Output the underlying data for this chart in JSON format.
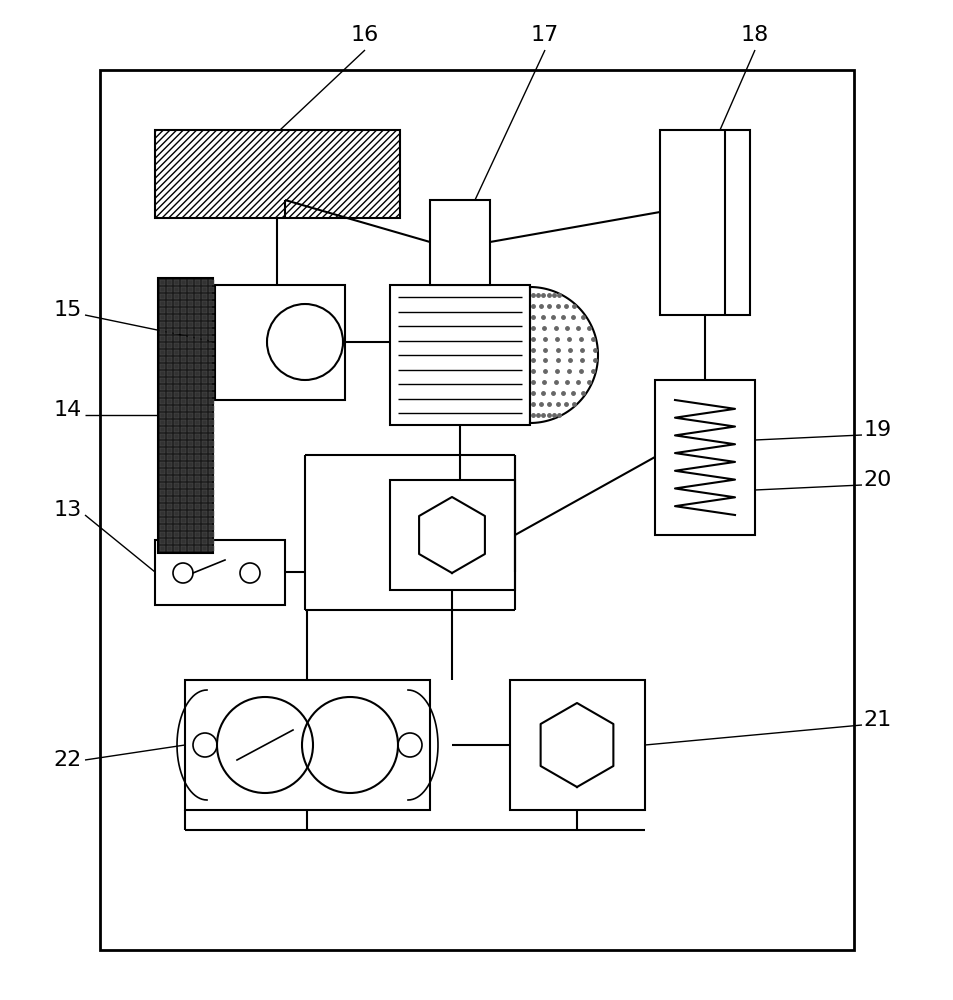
{
  "bg_color": "#ffffff",
  "line_color": "#000000",
  "figsize": [
    9.54,
    10.0
  ],
  "dpi": 100
}
